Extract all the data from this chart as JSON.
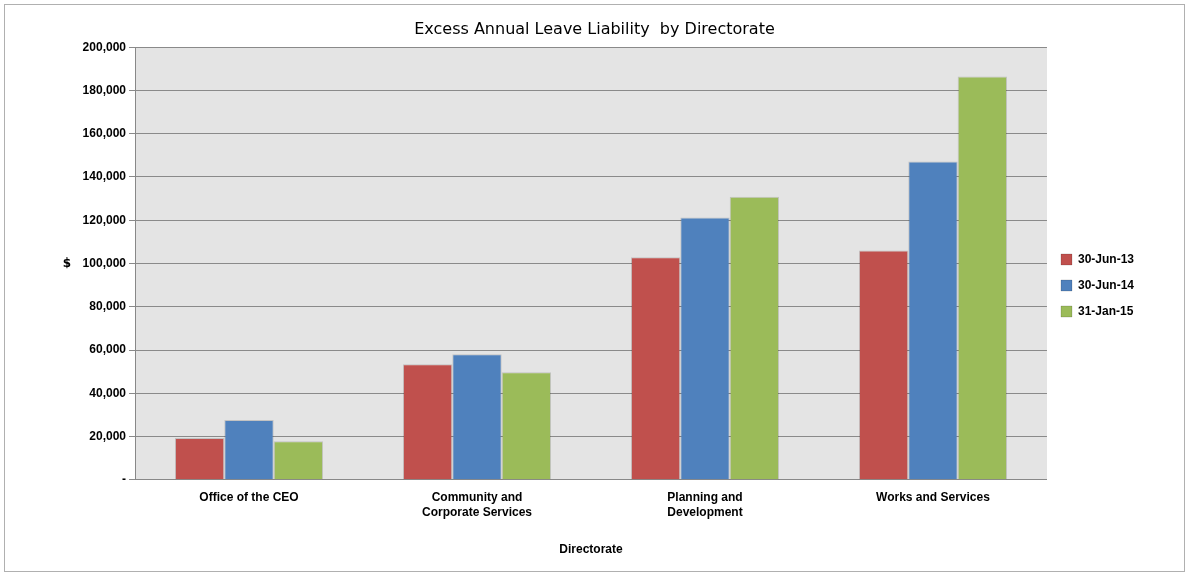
{
  "chart_data": {
    "type": "bar",
    "title": "Excess Annual Leave Liability  by Directorate",
    "xlabel": "Directorate",
    "ylabel": "$",
    "categories": [
      "Office of the CEO",
      "Community and Corporate Services",
      "Planning and Development",
      "Works and Services"
    ],
    "series": [
      {
        "name": "30-Jun-13",
        "color": "#c0504d",
        "values": [
          19300,
          53400,
          102900,
          106000
        ]
      },
      {
        "name": "30-Jun-14",
        "color": "#4f81bd",
        "values": [
          27600,
          58000,
          121300,
          147100
        ]
      },
      {
        "name": "31-Jan-15",
        "color": "#9bbb59",
        "values": [
          17800,
          49700,
          130900,
          186400
        ]
      }
    ],
    "ylim": [
      0,
      200000
    ],
    "yticks": [
      {
        "value": 0,
        "label": "-"
      },
      {
        "value": 20000,
        "label": "20,000"
      },
      {
        "value": 40000,
        "label": "40,000"
      },
      {
        "value": 60000,
        "label": "60,000"
      },
      {
        "value": 80000,
        "label": "80,000"
      },
      {
        "value": 100000,
        "label": "100,000"
      },
      {
        "value": 120000,
        "label": "120,000"
      },
      {
        "value": 140000,
        "label": "140,000"
      },
      {
        "value": 160000,
        "label": "160,000"
      },
      {
        "value": 180000,
        "label": "180,000"
      },
      {
        "value": 200000,
        "label": "200,000"
      }
    ],
    "grid": "y",
    "legend": "right"
  }
}
